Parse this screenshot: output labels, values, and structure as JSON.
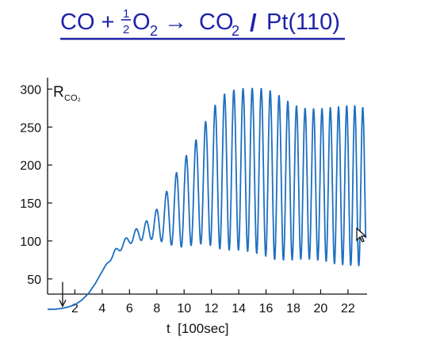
{
  "title": {
    "lhs": "CO +",
    "frac_num": "1",
    "frac_den": "2",
    "o2": "O",
    "o2_sub": "2",
    "arrow": "→",
    "co2": "CO",
    "co2_sub": "2",
    "slash": "/",
    "surface": "Pt(110)",
    "color": "#1e22a8"
  },
  "chart_data": {
    "type": "line",
    "title": "CO + ½O₂ → CO₂ / Pt(110)",
    "xlabel": "t  [100sec]",
    "ylabel": "R",
    "ylabel_sub": "CO₂",
    "xlim": [
      0,
      23.4
    ],
    "ylim": [
      30,
      315
    ],
    "xticks": [
      2,
      4,
      6,
      8,
      10,
      12,
      14,
      16,
      18,
      20,
      22
    ],
    "yticks": [
      50,
      100,
      150,
      200,
      250,
      300
    ],
    "grid": false,
    "line_color": "#1f6fc0",
    "annotation": {
      "type": "arrow-down",
      "x": 1.1,
      "y_from": 46,
      "y_to": 14
    },
    "series": [
      {
        "x": [
          0.0,
          0.5,
          1.0,
          1.5,
          2.0,
          2.5,
          3.0,
          3.5,
          4.0,
          4.5,
          5.0,
          5.5,
          6.0,
          6.5,
          7.0,
          7.5,
          8.0,
          8.5,
          9.0,
          9.5,
          10.0,
          10.5,
          11.0,
          11.5,
          12.0,
          12.5,
          13.0,
          13.5,
          14.0,
          14.5,
          15.0,
          15.5,
          16.0,
          16.5,
          17.0,
          17.5,
          18.0,
          18.5,
          19.0,
          19.5,
          20.0,
          20.5,
          21.0,
          21.5,
          22.0,
          22.5,
          23.0,
          23.3
        ],
        "center": [
          10,
          10,
          11,
          13,
          16,
          22,
          31,
          44,
          60,
          74,
          86,
          95,
          102,
          108,
          112,
          116,
          122,
          128,
          135,
          142,
          150,
          158,
          167,
          175,
          182,
          188,
          191,
          193,
          194,
          194,
          193,
          192,
          190,
          186,
          183,
          180,
          177,
          176,
          175,
          175,
          174,
          174,
          173,
          173,
          173,
          173,
          172,
          172
        ],
        "amplitude": [
          0,
          0,
          0,
          0,
          0,
          0,
          0,
          0,
          0,
          2,
          4,
          5,
          6,
          8,
          11,
          14,
          20,
          30,
          40,
          50,
          58,
          64,
          70,
          80,
          88,
          98,
          103,
          105,
          106,
          107,
          108,
          109,
          110,
          110,
          108,
          105,
          102,
          100,
          99,
          99,
          100,
          101,
          103,
          104,
          105,
          105,
          105,
          100
        ],
        "period_start": 0.82,
        "period_end": 0.58
      }
    ]
  }
}
